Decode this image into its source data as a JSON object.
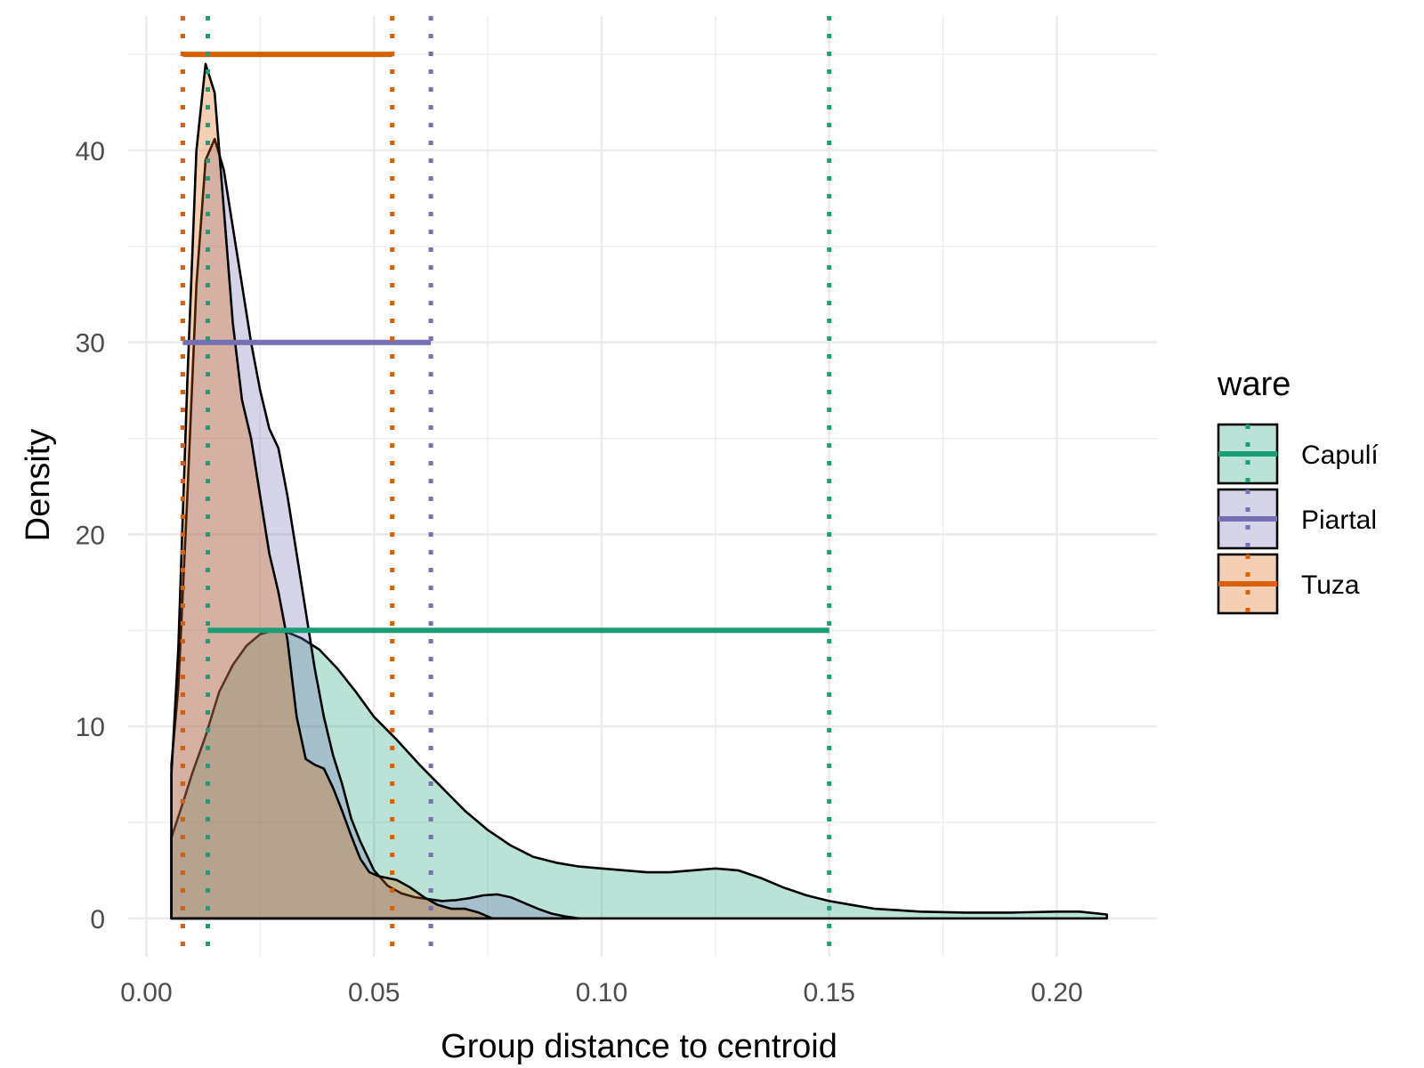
{
  "chart_data": {
    "type": "area",
    "xlabel": "Group distance to centroid",
    "ylabel": "Density",
    "xlim": [
      -0.004,
      0.222
    ],
    "ylim": [
      -2,
      47
    ],
    "x_ticks": [
      0.0,
      0.05,
      0.1,
      0.15,
      0.2
    ],
    "x_tick_labels": [
      "0.00",
      "0.05",
      "0.10",
      "0.15",
      "0.20"
    ],
    "y_ticks": [
      0,
      10,
      20,
      30,
      40
    ],
    "y_tick_labels": [
      "0",
      "10",
      "20",
      "30",
      "40"
    ],
    "grid": true,
    "legend": {
      "title": "ware",
      "placement": "right",
      "entries": [
        "Capulí",
        "Piartal",
        "Tuza"
      ]
    },
    "series": [
      {
        "name": "Capulí",
        "color": "#1b9e77",
        "fill": "#b2dfd3",
        "density": {
          "x": [
            0.0055,
            0.008,
            0.01,
            0.013,
            0.016,
            0.019,
            0.022,
            0.025,
            0.028,
            0.031,
            0.034,
            0.038,
            0.042,
            0.046,
            0.05,
            0.055,
            0.06,
            0.065,
            0.07,
            0.075,
            0.08,
            0.085,
            0.09,
            0.095,
            0.1,
            0.105,
            0.11,
            0.115,
            0.12,
            0.125,
            0.13,
            0.135,
            0.14,
            0.145,
            0.15,
            0.155,
            0.16,
            0.17,
            0.18,
            0.19,
            0.2,
            0.205,
            0.211
          ],
          "y": [
            4.2,
            6.0,
            7.5,
            9.5,
            11.8,
            13.2,
            14.2,
            14.8,
            15.0,
            14.9,
            14.6,
            14.0,
            13.0,
            11.8,
            10.5,
            9.3,
            8.0,
            6.8,
            5.6,
            4.6,
            3.8,
            3.2,
            2.9,
            2.7,
            2.6,
            2.5,
            2.4,
            2.4,
            2.5,
            2.6,
            2.5,
            2.1,
            1.6,
            1.2,
            0.9,
            0.7,
            0.5,
            0.35,
            0.3,
            0.3,
            0.35,
            0.35,
            0.2
          ]
        },
        "bar": {
          "from": 0.0135,
          "to": 0.15,
          "y": 15
        },
        "vlines": [
          0.0135,
          0.15
        ]
      },
      {
        "name": "Piartal",
        "color": "#7570b3",
        "fill": "#d3d2e9",
        "density": {
          "x": [
            0.0055,
            0.007,
            0.009,
            0.011,
            0.013,
            0.015,
            0.017,
            0.019,
            0.021,
            0.023,
            0.025,
            0.027,
            0.029,
            0.031,
            0.033,
            0.035,
            0.037,
            0.039,
            0.041,
            0.043,
            0.045,
            0.047,
            0.05,
            0.053,
            0.056,
            0.059,
            0.062,
            0.065,
            0.068,
            0.071,
            0.074,
            0.077,
            0.08,
            0.083,
            0.086,
            0.089,
            0.092,
            0.095
          ],
          "y": [
            8.0,
            12.0,
            22.0,
            33.0,
            39.5,
            40.6,
            39.0,
            36.0,
            33.0,
            30.0,
            27.5,
            25.5,
            24.5,
            22.0,
            19.0,
            16.0,
            13.0,
            10.5,
            8.5,
            7.0,
            5.2,
            4.0,
            2.5,
            1.7,
            1.3,
            1.1,
            1.0,
            0.9,
            0.95,
            1.05,
            1.2,
            1.25,
            1.1,
            0.8,
            0.5,
            0.25,
            0.1,
            0.0
          ]
        },
        "bar": {
          "from": 0.008,
          "to": 0.0625,
          "y": 30
        },
        "vlines": [
          0.008,
          0.0625
        ]
      },
      {
        "name": "Tuza",
        "color": "#d95f02",
        "fill": "#f4cbb0",
        "density": {
          "x": [
            0.0055,
            0.007,
            0.009,
            0.011,
            0.013,
            0.015,
            0.017,
            0.019,
            0.021,
            0.023,
            0.025,
            0.027,
            0.029,
            0.031,
            0.033,
            0.035,
            0.037,
            0.039,
            0.041,
            0.043,
            0.045,
            0.047,
            0.049,
            0.051,
            0.053,
            0.055,
            0.058,
            0.061,
            0.064,
            0.067,
            0.07,
            0.073,
            0.076
          ],
          "y": [
            7.5,
            14.0,
            28.0,
            40.0,
            44.5,
            43.0,
            37.0,
            31.0,
            27.0,
            25.0,
            22.0,
            19.0,
            17.0,
            14.5,
            10.5,
            8.3,
            8.0,
            7.8,
            6.8,
            5.6,
            4.3,
            3.1,
            2.4,
            2.2,
            2.1,
            2.0,
            1.6,
            1.1,
            0.7,
            0.5,
            0.5,
            0.3,
            0.0
          ]
        },
        "bar": {
          "from": 0.008,
          "to": 0.054,
          "y": 45
        },
        "vlines": [
          0.008,
          0.054
        ]
      }
    ]
  }
}
